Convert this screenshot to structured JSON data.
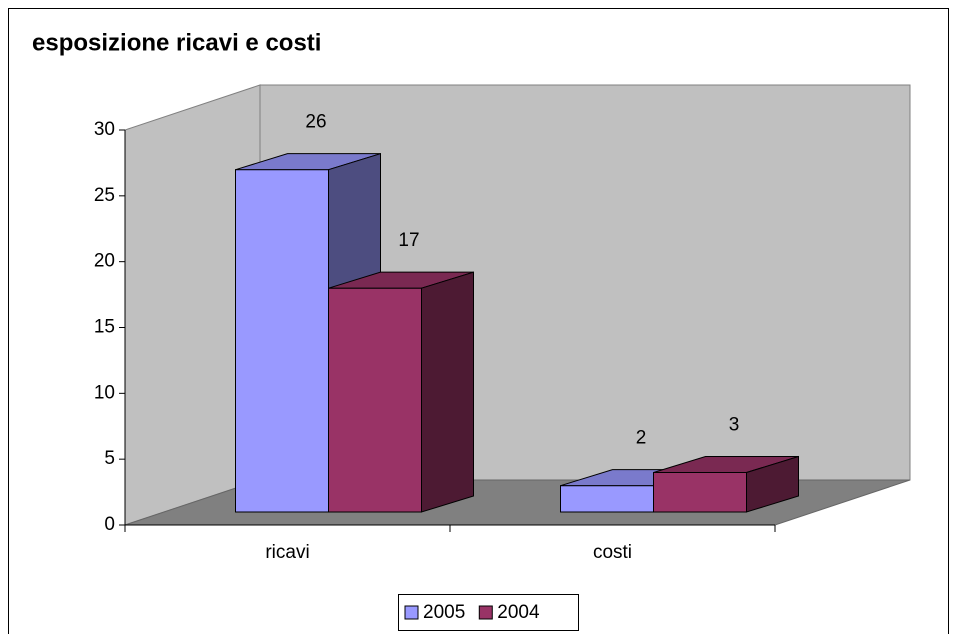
{
  "chart_data": {
    "type": "bar3d",
    "title": "esposizione ricavi e costi",
    "categories": [
      "ricavi",
      "costi"
    ],
    "series": [
      {
        "name": "2005",
        "color": "#9999ff",
        "values": [
          26,
          2
        ]
      },
      {
        "name": "2004",
        "color": "#993366",
        "values": [
          17,
          3
        ]
      }
    ],
    "ylim": [
      0,
      30
    ],
    "yticks": [
      0,
      5,
      10,
      15,
      20,
      25,
      30
    ],
    "legend": "bottom"
  }
}
